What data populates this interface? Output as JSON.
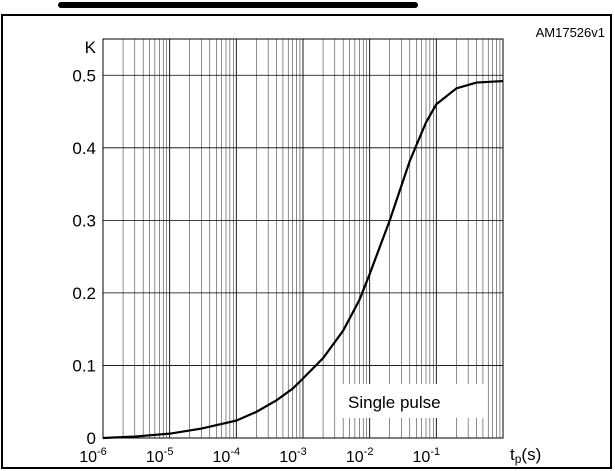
{
  "figure_id": "AM17526v1",
  "chart_data": {
    "type": "line",
    "x_scale": "log",
    "xlim": [
      1e-06,
      1
    ],
    "ylim": [
      0,
      0.55
    ],
    "grid": true,
    "y_axis_label": "K",
    "x_axis_label": "t",
    "x_axis_label_subscript": "p",
    "x_axis_label_unit": "(s)",
    "annotation": "Single pulse",
    "x_ticks": [
      {
        "value": 1e-06,
        "base": "10",
        "exp": "-6"
      },
      {
        "value": 1e-05,
        "base": "10",
        "exp": "-5"
      },
      {
        "value": 0.0001,
        "base": "10",
        "exp": "-4"
      },
      {
        "value": 0.001,
        "base": "10",
        "exp": "-3"
      },
      {
        "value": 0.01,
        "base": "10",
        "exp": "-2"
      },
      {
        "value": 0.1,
        "base": "10",
        "exp": "-1"
      }
    ],
    "y_ticks": [
      {
        "value": 0,
        "label": "0"
      },
      {
        "value": 0.1,
        "label": "0.1"
      },
      {
        "value": 0.2,
        "label": "0.2"
      },
      {
        "value": 0.3,
        "label": "0.3"
      },
      {
        "value": 0.4,
        "label": "0.4"
      },
      {
        "value": 0.5,
        "label": "0.5"
      }
    ],
    "series": [
      {
        "color": "#000000",
        "x": [
          1e-06,
          3e-06,
          1e-05,
          3e-05,
          0.0001,
          0.0002,
          0.0004,
          0.0007,
          0.001,
          0.002,
          0.004,
          0.007,
          0.01,
          0.02,
          0.04,
          0.07,
          0.1,
          0.2,
          0.4,
          1
        ],
        "y": [
          0.0,
          0.002,
          0.006,
          0.013,
          0.024,
          0.036,
          0.052,
          0.068,
          0.082,
          0.11,
          0.148,
          0.19,
          0.226,
          0.3,
          0.382,
          0.435,
          0.46,
          0.482,
          0.49,
          0.492
        ]
      }
    ]
  }
}
